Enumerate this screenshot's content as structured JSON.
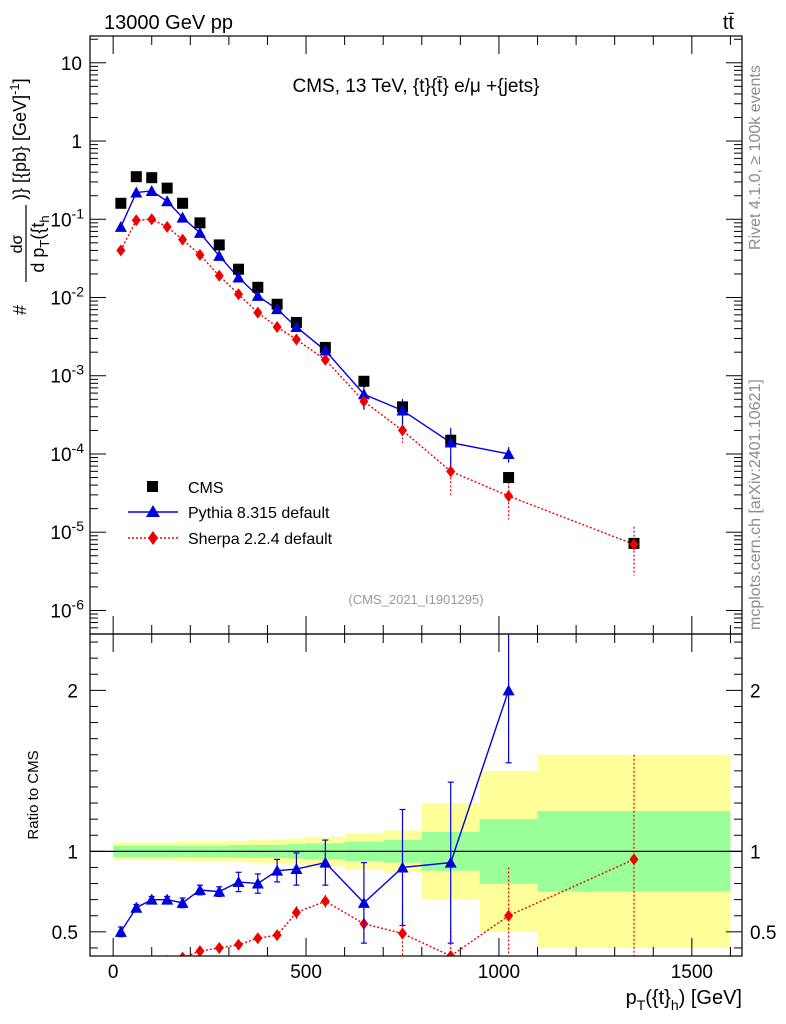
{
  "header": {
    "energy_label": "13000 GeV pp",
    "process_label": "tt̄"
  },
  "side_labels": {
    "rivet": "Rivet 4.1.0, ≥ 100k events",
    "mcplots": "mcplots.cern.ch [arXiv:2401.10621]"
  },
  "colors": {
    "data": "#000000",
    "pythia": "#0000dd",
    "sherpa": "#ee0000",
    "band_inner": "#99ff99",
    "band_outer": "#ffff99",
    "watermark": "#999999"
  },
  "chart_data": [
    {
      "type": "scatter",
      "title": "CMS, 13 TeV, {t}{t̄} e/μ +{jets}",
      "analysis_tag": "(CMS_2021_I1901295)",
      "ylabel": "d σ / d p_T({t}_h) [{pb} [GeV]^-1]",
      "yscale": "log",
      "ylim": [
        5e-07,
        22
      ],
      "xlim": [
        -60,
        1630
      ],
      "y_tick_labels": [
        "10^-6",
        "10^-5",
        "10^-4",
        "10^-3",
        "10^-2",
        "10^-1",
        "1",
        "10"
      ],
      "legend_position": "lower-left",
      "x": [
        20,
        60,
        100,
        140,
        180,
        225,
        275,
        325,
        375,
        425,
        475,
        550,
        650,
        750,
        875,
        1025,
        1350
      ],
      "series": [
        {
          "name": "CMS",
          "marker": "square",
          "values": [
            0.16,
            0.35,
            0.34,
            0.25,
            0.16,
            0.09,
            0.047,
            0.023,
            0.0135,
            0.0082,
            0.0048,
            0.0023,
            0.00085,
            0.0004,
            0.00015,
            5e-05,
            7.2e-06
          ]
        },
        {
          "name": "Pythia 8.315 default",
          "marker": "triangle",
          "values": [
            0.08,
            0.22,
            0.23,
            0.17,
            0.105,
            0.067,
            0.034,
            0.018,
            0.0105,
            0.0071,
            0.0042,
            0.0021,
            0.00058,
            0.00036,
            0.00014,
            0.0001,
            null
          ]
        },
        {
          "name": "Sherpa 2.2.4 default",
          "marker": "diamond",
          "values": [
            0.04,
            0.097,
            0.1,
            0.08,
            0.055,
            0.035,
            0.019,
            0.011,
            0.0064,
            0.0042,
            0.0029,
            0.0016,
            0.00047,
            0.0002,
            6e-05,
            2.9e-05,
            7e-06
          ]
        }
      ]
    },
    {
      "type": "scatter",
      "ylabel": "Ratio to CMS",
      "xlabel": "p_T({t}_h) [GeV]",
      "ylim": [
        0.35,
        2.35
      ],
      "xlim": [
        -60,
        1630
      ],
      "y_tick_labels": [
        "0.5",
        "1",
        "2"
      ],
      "x_tick_labels": [
        "0",
        "500",
        "1000",
        "1500"
      ],
      "x": [
        20,
        60,
        100,
        140,
        180,
        225,
        275,
        325,
        375,
        425,
        475,
        550,
        650,
        750,
        875,
        1025,
        1350
      ],
      "bin_edges": [
        0,
        40,
        80,
        120,
        160,
        200,
        250,
        300,
        350,
        400,
        450,
        500,
        600,
        700,
        800,
        950,
        1100,
        1600
      ],
      "band_inner_halfwidth": [
        0.035,
        0.035,
        0.035,
        0.035,
        0.035,
        0.035,
        0.035,
        0.04,
        0.04,
        0.04,
        0.045,
        0.05,
        0.06,
        0.07,
        0.12,
        0.2,
        0.25
      ],
      "band_outer_halfwidth": [
        0.055,
        0.055,
        0.055,
        0.055,
        0.06,
        0.06,
        0.06,
        0.065,
        0.07,
        0.075,
        0.08,
        0.09,
        0.11,
        0.13,
        0.3,
        0.5,
        0.6
      ],
      "series": [
        {
          "name": "Pythia 8.315 default",
          "values": [
            0.5,
            0.65,
            0.7,
            0.7,
            0.68,
            0.76,
            0.75,
            0.81,
            0.8,
            0.88,
            0.89,
            0.93,
            0.68,
            0.9,
            0.93,
            2.0,
            null
          ],
          "err": [
            0.03,
            0.02,
            0.02,
            0.02,
            0.03,
            0.03,
            0.03,
            0.06,
            0.06,
            0.07,
            0.1,
            0.14,
            0.25,
            0.36,
            0.5,
            0.45,
            null
          ]
        },
        {
          "name": "Sherpa 2.2.4 default",
          "values": [
            0.25,
            0.28,
            0.3,
            0.32,
            0.34,
            0.38,
            0.4,
            0.42,
            0.46,
            0.48,
            0.62,
            0.69,
            0.55,
            0.49,
            0.35,
            0.6,
            0.95
          ],
          "err": [
            0.02,
            0.02,
            0.02,
            0.02,
            0.02,
            0.02,
            0.02,
            0.02,
            0.03,
            0.03,
            0.04,
            0.04,
            0.12,
            0.15,
            0.18,
            0.3,
            0.65
          ]
        }
      ]
    }
  ]
}
